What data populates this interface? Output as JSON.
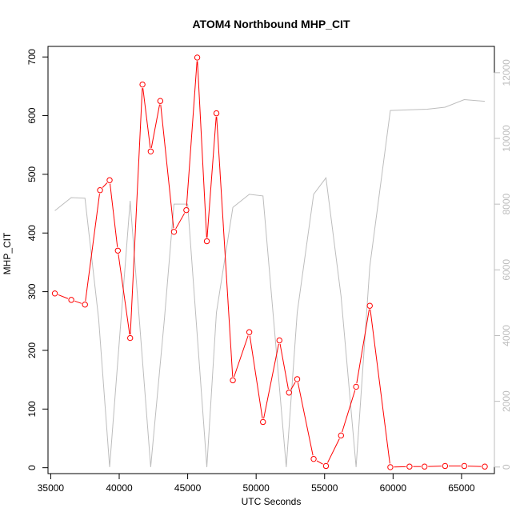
{
  "chart_data": {
    "type": "line",
    "title": "ATOM4 Northbound MHP_CIT",
    "xlabel": "UTC Seconds",
    "ylabel": "MHP_CIT",
    "xlim": [
      34800,
      67400
    ],
    "ylim": [
      -10,
      718
    ],
    "y2lim": [
      -200,
      12800
    ],
    "grid": false,
    "x_ticks": [
      35000,
      40000,
      45000,
      50000,
      55000,
      60000,
      65000
    ],
    "y_ticks": [
      0,
      100,
      200,
      300,
      400,
      500,
      600,
      700
    ],
    "y2_ticks": [
      0,
      2000,
      4000,
      6000,
      8000,
      10000,
      12000
    ],
    "colors": {
      "primary": "#ff0000",
      "secondary": "#bdbdbd",
      "frame": "#000000"
    },
    "series": [
      {
        "axis": "left",
        "style": "line+points",
        "points": [
          [
            35300,
            297
          ],
          [
            36500,
            286
          ],
          [
            37500,
            278
          ],
          [
            38600,
            473
          ],
          [
            39300,
            490
          ],
          [
            39900,
            370
          ],
          [
            40800,
            221
          ],
          [
            41700,
            653
          ],
          [
            42300,
            539
          ],
          [
            43000,
            625
          ],
          [
            44000,
            402
          ],
          [
            44900,
            439
          ],
          [
            45700,
            699
          ],
          [
            46400,
            386
          ],
          [
            47100,
            604
          ],
          [
            48300,
            149
          ],
          [
            49500,
            231
          ],
          [
            50500,
            78
          ],
          [
            51700,
            217
          ],
          [
            52400,
            128
          ],
          [
            53000,
            151
          ],
          [
            54200,
            15
          ],
          [
            55100,
            3
          ],
          [
            56200,
            55
          ],
          [
            57300,
            138
          ],
          [
            58300,
            276
          ],
          [
            59800,
            1
          ],
          [
            61200,
            2
          ],
          [
            62300,
            2
          ],
          [
            63800,
            3
          ],
          [
            65200,
            3
          ],
          [
            66700,
            2
          ]
        ]
      },
      {
        "axis": "right",
        "style": "line",
        "points": [
          [
            35300,
            7800
          ],
          [
            36500,
            8200
          ],
          [
            37500,
            8180
          ],
          [
            38500,
            4500
          ],
          [
            39300,
            0
          ],
          [
            40800,
            8100
          ],
          [
            42300,
            0
          ],
          [
            43300,
            4500
          ],
          [
            44000,
            8000
          ],
          [
            45000,
            8000
          ],
          [
            46400,
            0
          ],
          [
            47100,
            4700
          ],
          [
            48300,
            7900
          ],
          [
            49500,
            8300
          ],
          [
            50500,
            8250
          ],
          [
            52200,
            0
          ],
          [
            53000,
            4700
          ],
          [
            54200,
            8300
          ],
          [
            55100,
            8800
          ],
          [
            56200,
            5200
          ],
          [
            57300,
            0
          ],
          [
            58300,
            6100
          ],
          [
            59800,
            10850
          ],
          [
            61200,
            10870
          ],
          [
            62500,
            10890
          ],
          [
            63800,
            10950
          ],
          [
            65200,
            11180
          ],
          [
            66700,
            11130
          ]
        ]
      }
    ]
  }
}
